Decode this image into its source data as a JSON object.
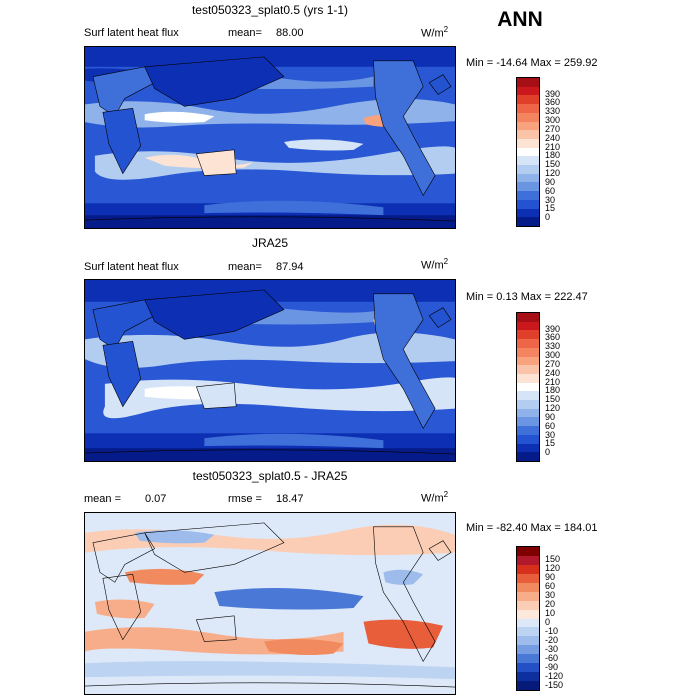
{
  "header": {
    "season": "ANN"
  },
  "panels": [
    {
      "title": "test050323_splat0.5 (yrs 1-1)",
      "variable": "Surf latent heat flux",
      "mean_label": "mean=",
      "mean_value": "88.00",
      "units_base": "W/m",
      "units_exp": "2",
      "min_label": "Min =",
      "min_value": "-14.64",
      "max_label": "Max =",
      "max_value": "259.92",
      "kind": "field",
      "colorbar": {
        "levels": [
          "390",
          "360",
          "330",
          "300",
          "270",
          "240",
          "210",
          "180",
          "150",
          "120",
          "90",
          "60",
          "30",
          "15",
          "0"
        ],
        "colors": [
          "#a50f15",
          "#cb181d",
          "#e0402a",
          "#ef6548",
          "#f4845f",
          "#f8a27e",
          "#fac4a8",
          "#fde3d3",
          "#ffffff",
          "#d6e4f7",
          "#b3cdf1",
          "#8fb2ea",
          "#6a95e3",
          "#3f6fd9",
          "#2353d1",
          "#0c2fb3",
          "#061b8a"
        ]
      }
    },
    {
      "title": "JRA25",
      "variable": "Surf latent heat flux",
      "mean_label": "mean=",
      "mean_value": "87.94",
      "units_base": "W/m",
      "units_exp": "2",
      "min_label": "Min =",
      "min_value": "0.13",
      "max_label": "Max =",
      "max_value": "222.47",
      "kind": "field",
      "colorbar": {
        "levels": [
          "390",
          "360",
          "330",
          "300",
          "270",
          "240",
          "210",
          "180",
          "150",
          "120",
          "90",
          "60",
          "30",
          "15",
          "0"
        ],
        "colors": [
          "#a50f15",
          "#cb181d",
          "#e0402a",
          "#ef6548",
          "#f4845f",
          "#f8a27e",
          "#fac4a8",
          "#fde3d3",
          "#ffffff",
          "#d6e4f7",
          "#b3cdf1",
          "#8fb2ea",
          "#6a95e3",
          "#3f6fd9",
          "#2353d1",
          "#0c2fb3",
          "#061b8a"
        ]
      }
    },
    {
      "title": "test050323_splat0.5 - JRA25",
      "variable": "",
      "mean_label": "mean =",
      "mean_value": "0.07",
      "rmse_label": "rmse =",
      "rmse_value": "18.47",
      "units_base": "W/m",
      "units_exp": "2",
      "min_label": "Min =",
      "min_value": "-82.40",
      "max_label": "Max =",
      "max_value": "184.01",
      "kind": "diff",
      "colorbar": {
        "levels": [
          "150",
          "120",
          "90",
          "60",
          "30",
          "20",
          "10",
          "0",
          "-10",
          "-20",
          "-30",
          "-60",
          "-90",
          "-120",
          "-150"
        ],
        "colors": [
          "#7f0000",
          "#b2182b",
          "#d6301d",
          "#e85d3a",
          "#f18a5e",
          "#f8ad8a",
          "#fbcdb4",
          "#fde8dc",
          "#dde9f8",
          "#bdd3f2",
          "#9dbbeb",
          "#769de2",
          "#4a78d6",
          "#2350c4",
          "#0e2f9e",
          "#061a7a"
        ]
      }
    }
  ]
}
